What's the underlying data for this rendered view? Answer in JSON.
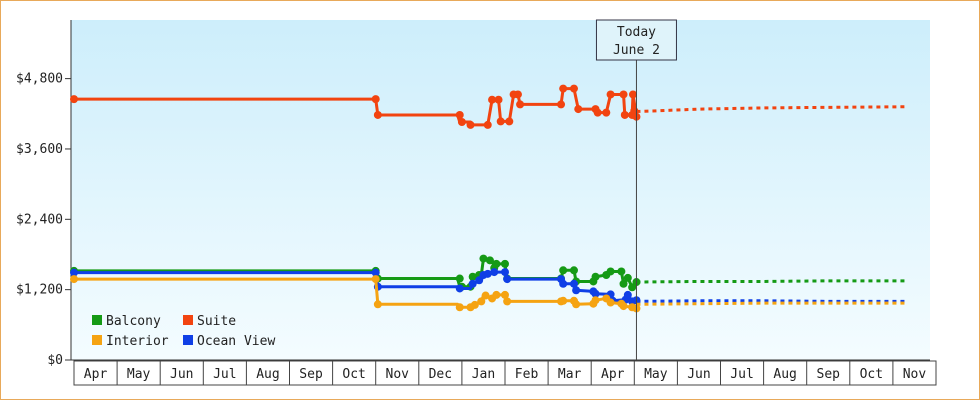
{
  "chart_data": {
    "type": "line",
    "title": "",
    "xlabel": "",
    "ylabel": "",
    "ylim": [
      0,
      5800
    ],
    "y_ticks": [
      0,
      1200,
      2400,
      3600,
      4800
    ],
    "y_tick_labels": [
      "$0",
      "$1,200",
      "$2,400",
      "$3,600",
      "$4,800"
    ],
    "months": [
      "Apr",
      "May",
      "Jun",
      "Jul",
      "Aug",
      "Sep",
      "Oct",
      "Nov",
      "Dec",
      "Jan",
      "Feb",
      "Mar",
      "Apr",
      "May",
      "Jun",
      "Jul",
      "Aug",
      "Sep",
      "Oct",
      "Nov"
    ],
    "today_marker": {
      "line1": "Today",
      "line2": "June 2",
      "x": 13.05
    },
    "legend": [
      "Balcony",
      "Suite",
      "Interior",
      "Ocean View"
    ],
    "colors": {
      "Balcony": "#159a15",
      "Suite": "#f24410",
      "Interior": "#f5a312",
      "Ocean View": "#0f3fe6"
    },
    "series": [
      {
        "name": "Suite",
        "points": [
          [
            0,
            4450
          ],
          [
            7,
            4450
          ],
          [
            7.05,
            4180
          ],
          [
            8.9,
            4180
          ],
          [
            8.95,
            4060
          ],
          [
            9.2,
            4060
          ],
          [
            9.25,
            4010
          ],
          [
            9.6,
            4010
          ],
          [
            9.7,
            4440
          ],
          [
            9.85,
            4440
          ],
          [
            9.9,
            4070
          ],
          [
            10.1,
            4070
          ],
          [
            10.2,
            4530
          ],
          [
            10.3,
            4530
          ],
          [
            10.35,
            4360
          ],
          [
            11.3,
            4360
          ],
          [
            11.35,
            4630
          ],
          [
            11.6,
            4630
          ],
          [
            11.7,
            4280
          ],
          [
            12.1,
            4280
          ],
          [
            12.15,
            4220
          ],
          [
            12.35,
            4220
          ],
          [
            12.45,
            4530
          ],
          [
            12.75,
            4530
          ],
          [
            12.78,
            4180
          ],
          [
            12.95,
            4180
          ],
          [
            12.97,
            4530
          ],
          [
            13.05,
            4150
          ]
        ],
        "forecast": [
          [
            13.05,
            4240
          ],
          [
            13.5,
            4250
          ],
          [
            14.5,
            4280
          ],
          [
            16,
            4300
          ],
          [
            17.5,
            4310
          ],
          [
            19.3,
            4320
          ]
        ]
      },
      {
        "name": "Balcony",
        "points": [
          [
            0,
            1520
          ],
          [
            7,
            1520
          ],
          [
            7.05,
            1390
          ],
          [
            8.9,
            1390
          ],
          [
            8.95,
            1250
          ],
          [
            9.2,
            1250
          ],
          [
            9.25,
            1420
          ],
          [
            9.45,
            1450
          ],
          [
            9.5,
            1730
          ],
          [
            9.7,
            1700
          ],
          [
            9.75,
            1570
          ],
          [
            9.8,
            1640
          ],
          [
            10,
            1640
          ],
          [
            10.05,
            1390
          ],
          [
            11.3,
            1390
          ],
          [
            11.35,
            1530
          ],
          [
            11.6,
            1530
          ],
          [
            11.65,
            1340
          ],
          [
            12.05,
            1340
          ],
          [
            12.1,
            1420
          ],
          [
            12.35,
            1450
          ],
          [
            12.45,
            1510
          ],
          [
            12.7,
            1510
          ],
          [
            12.75,
            1300
          ],
          [
            12.85,
            1400
          ],
          [
            12.95,
            1240
          ],
          [
            13.05,
            1330
          ]
        ],
        "forecast": [
          [
            13.05,
            1330
          ],
          [
            14.5,
            1340
          ],
          [
            16,
            1340
          ],
          [
            17.5,
            1350
          ],
          [
            19.3,
            1350
          ]
        ]
      },
      {
        "name": "Ocean View",
        "points": [
          [
            0,
            1490
          ],
          [
            7,
            1490
          ],
          [
            7.05,
            1250
          ],
          [
            8.9,
            1250
          ],
          [
            8.95,
            1220
          ],
          [
            9.2,
            1220
          ],
          [
            9.25,
            1300
          ],
          [
            9.45,
            1360
          ],
          [
            9.5,
            1450
          ],
          [
            9.65,
            1470
          ],
          [
            9.75,
            1500
          ],
          [
            10,
            1500
          ],
          [
            10.05,
            1380
          ],
          [
            11.3,
            1380
          ],
          [
            11.35,
            1300
          ],
          [
            11.6,
            1300
          ],
          [
            11.65,
            1190
          ],
          [
            12.05,
            1170
          ],
          [
            12.1,
            1130
          ],
          [
            12.45,
            1120
          ],
          [
            12.5,
            1010
          ],
          [
            12.8,
            1030
          ],
          [
            12.85,
            1110
          ],
          [
            12.95,
            1000
          ],
          [
            13.05,
            1020
          ]
        ],
        "forecast": [
          [
            13.05,
            1000
          ],
          [
            14.5,
            1010
          ],
          [
            16,
            1010
          ],
          [
            17.5,
            1000
          ],
          [
            19.3,
            1000
          ]
        ]
      },
      {
        "name": "Interior",
        "points": [
          [
            0,
            1380
          ],
          [
            7,
            1380
          ],
          [
            7.05,
            950
          ],
          [
            8.9,
            950
          ],
          [
            8.95,
            900
          ],
          [
            9.2,
            900
          ],
          [
            9.25,
            940
          ],
          [
            9.45,
            1000
          ],
          [
            9.5,
            1100
          ],
          [
            9.7,
            1050
          ],
          [
            9.8,
            1110
          ],
          [
            10,
            1110
          ],
          [
            10.05,
            1000
          ],
          [
            11.3,
            1000
          ],
          [
            11.35,
            1010
          ],
          [
            11.6,
            1010
          ],
          [
            11.65,
            950
          ],
          [
            12.05,
            960
          ],
          [
            12.1,
            1020
          ],
          [
            12.35,
            1050
          ],
          [
            12.45,
            980
          ],
          [
            12.7,
            960
          ],
          [
            12.75,
            920
          ],
          [
            12.95,
            900
          ],
          [
            13.05,
            880
          ]
        ],
        "forecast": [
          [
            13.05,
            950
          ],
          [
            14.5,
            960
          ],
          [
            16,
            970
          ],
          [
            17.5,
            970
          ],
          [
            19.3,
            970
          ]
        ]
      }
    ],
    "markers": {
      "Suite": [
        [
          0,
          4450
        ],
        [
          7,
          4450
        ],
        [
          7.05,
          4180
        ],
        [
          8.95,
          4180
        ],
        [
          9,
          4060
        ],
        [
          9.2,
          4010
        ],
        [
          9.6,
          4010
        ],
        [
          9.7,
          4440
        ],
        [
          9.85,
          4440
        ],
        [
          9.9,
          4070
        ],
        [
          10.1,
          4070
        ],
        [
          10.2,
          4530
        ],
        [
          10.3,
          4530
        ],
        [
          10.35,
          4360
        ],
        [
          11.3,
          4360
        ],
        [
          11.35,
          4630
        ],
        [
          11.6,
          4630
        ],
        [
          11.7,
          4280
        ],
        [
          12.1,
          4280
        ],
        [
          12.15,
          4220
        ],
        [
          12.35,
          4220
        ],
        [
          12.45,
          4530
        ],
        [
          12.75,
          4530
        ],
        [
          12.78,
          4180
        ],
        [
          12.95,
          4180
        ],
        [
          12.97,
          4530
        ],
        [
          13,
          4250
        ],
        [
          13.05,
          4150
        ]
      ],
      "Balcony": [
        [
          0,
          1520
        ],
        [
          7,
          1520
        ],
        [
          7.05,
          1390
        ],
        [
          8.95,
          1390
        ],
        [
          9,
          1250
        ],
        [
          9.2,
          1250
        ],
        [
          9.25,
          1420
        ],
        [
          9.4,
          1450
        ],
        [
          9.5,
          1730
        ],
        [
          9.65,
          1700
        ],
        [
          9.75,
          1570
        ],
        [
          9.8,
          1640
        ],
        [
          10,
          1640
        ],
        [
          10.05,
          1390
        ],
        [
          11.3,
          1390
        ],
        [
          11.35,
          1530
        ],
        [
          11.6,
          1530
        ],
        [
          11.65,
          1340
        ],
        [
          12.05,
          1340
        ],
        [
          12.1,
          1420
        ],
        [
          12.35,
          1450
        ],
        [
          12.45,
          1510
        ],
        [
          12.7,
          1510
        ],
        [
          12.75,
          1300
        ],
        [
          12.85,
          1400
        ],
        [
          12.95,
          1240
        ],
        [
          13.05,
          1330
        ]
      ],
      "Ocean View": [
        [
          0,
          1490
        ],
        [
          7,
          1490
        ],
        [
          7.05,
          1250
        ],
        [
          8.95,
          1220
        ],
        [
          9.25,
          1300
        ],
        [
          9.4,
          1360
        ],
        [
          9.5,
          1450
        ],
        [
          9.6,
          1470
        ],
        [
          9.75,
          1500
        ],
        [
          10,
          1500
        ],
        [
          10.05,
          1380
        ],
        [
          11.3,
          1380
        ],
        [
          11.35,
          1300
        ],
        [
          11.6,
          1300
        ],
        [
          11.65,
          1190
        ],
        [
          12.05,
          1170
        ],
        [
          12.1,
          1130
        ],
        [
          12.45,
          1120
        ],
        [
          12.5,
          1010
        ],
        [
          12.8,
          1030
        ],
        [
          12.85,
          1110
        ],
        [
          12.95,
          1000
        ],
        [
          13.05,
          1020
        ]
      ],
      "Interior": [
        [
          0,
          1380
        ],
        [
          7,
          1380
        ],
        [
          7.05,
          950
        ],
        [
          8.95,
          900
        ],
        [
          9.2,
          900
        ],
        [
          9.3,
          940
        ],
        [
          9.45,
          1000
        ],
        [
          9.55,
          1100
        ],
        [
          9.7,
          1050
        ],
        [
          9.8,
          1110
        ],
        [
          10,
          1110
        ],
        [
          10.05,
          1000
        ],
        [
          11.3,
          1000
        ],
        [
          11.35,
          1010
        ],
        [
          11.6,
          1010
        ],
        [
          11.65,
          950
        ],
        [
          12.05,
          960
        ],
        [
          12.1,
          1020
        ],
        [
          12.35,
          1050
        ],
        [
          12.45,
          980
        ],
        [
          12.7,
          960
        ],
        [
          12.75,
          920
        ],
        [
          12.95,
          900
        ],
        [
          13.05,
          880
        ]
      ]
    }
  }
}
